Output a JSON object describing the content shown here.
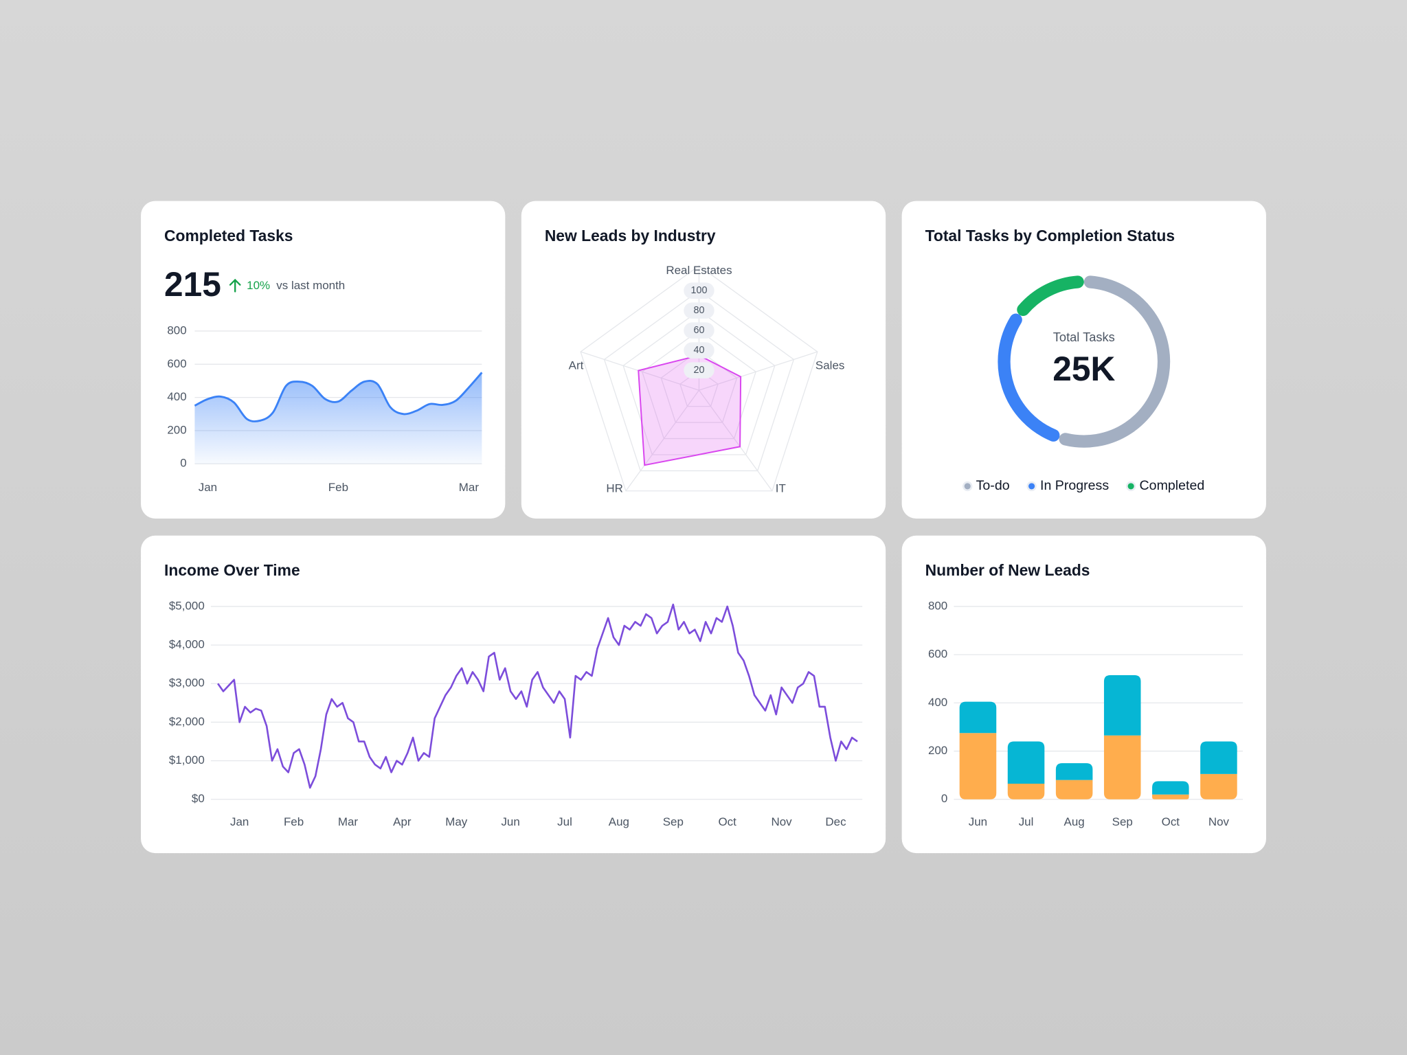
{
  "chart_data": [
    {
      "type": "area",
      "title": "Completed Tasks",
      "kpi": 215,
      "change": "10%",
      "change_note": "vs last month",
      "categories": [
        null,
        "Jan",
        null,
        null,
        null,
        null,
        null,
        null,
        null,
        null,
        null,
        "Feb",
        null,
        null,
        null,
        null,
        null,
        null,
        null,
        null,
        null,
        "Mar",
        null
      ],
      "values": [
        350,
        390,
        405,
        370,
        270,
        260,
        310,
        470,
        495,
        470,
        390,
        375,
        440,
        495,
        480,
        340,
        300,
        320,
        360,
        355,
        380,
        460,
        550
      ],
      "color": "#3b82f6",
      "ylim": [
        0,
        800
      ],
      "yticks": [
        0,
        200,
        400,
        600,
        800
      ],
      "grid": true
    },
    {
      "type": "radar",
      "title": "New Leads by Industry",
      "categories": [
        "Real Estates",
        "Sales",
        "IT",
        "HR",
        "Art"
      ],
      "values": [
        35,
        44,
        70,
        93,
        64
      ],
      "color": "#d946ef",
      "ylim": [
        0,
        100
      ],
      "yticks": [
        20,
        40,
        60,
        80,
        100
      ],
      "grid": true
    },
    {
      "type": "donut",
      "title": "Total Tasks by Completion Status",
      "center_label": "Total Tasks",
      "center_value": "25K",
      "categories": [
        "To-do",
        "In Progress",
        "Completed"
      ],
      "values": [
        55,
        30,
        15
      ],
      "colors": [
        "#a3afc2",
        "#3b82f6",
        "#16b364"
      ],
      "legend": "bottom"
    },
    {
      "type": "line",
      "title": "Income Over Time",
      "categories": [
        null,
        null,
        null,
        null,
        "Jan",
        null,
        null,
        null,
        null,
        null,
        null,
        null,
        null,
        null,
        "Feb",
        null,
        null,
        null,
        null,
        null,
        null,
        null,
        null,
        null,
        "Mar",
        null,
        null,
        null,
        null,
        null,
        null,
        null,
        null,
        null,
        "Apr",
        null,
        null,
        null,
        null,
        null,
        null,
        null,
        null,
        null,
        "May",
        null,
        null,
        null,
        null,
        null,
        null,
        null,
        null,
        null,
        "Jun",
        null,
        null,
        null,
        null,
        null,
        null,
        null,
        null,
        null,
        "Jul",
        null,
        null,
        null,
        null,
        null,
        null,
        null,
        null,
        null,
        "Aug",
        null,
        null,
        null,
        null,
        null,
        null,
        null,
        null,
        null,
        "Sep",
        null,
        null,
        null,
        null,
        null,
        null,
        null,
        null,
        null,
        "Oct",
        null,
        null,
        null,
        null,
        null,
        null,
        null,
        null,
        null,
        "Nov",
        null,
        null,
        null,
        null,
        null,
        null,
        null,
        null,
        null,
        "Dec",
        null,
        null,
        null,
        null
      ],
      "values": [
        3000,
        2800,
        2950,
        3100,
        2000,
        2400,
        2250,
        2350,
        2300,
        1900,
        1000,
        1300,
        850,
        700,
        1200,
        1300,
        900,
        300,
        600,
        1300,
        2200,
        2600,
        2400,
        2500,
        2100,
        2000,
        1500,
        1500,
        1100,
        900,
        800,
        1100,
        700,
        1000,
        900,
        1200,
        1600,
        1000,
        1200,
        1100,
        2100,
        2400,
        2700,
        2900,
        3200,
        3400,
        3000,
        3300,
        3100,
        2800,
        3700,
        3800,
        3100,
        3400,
        2800,
        2600,
        2800,
        2400,
        3100,
        3300,
        2900,
        2700,
        2500,
        2800,
        2600,
        1600,
        3200,
        3100,
        3300,
        3200,
        3900,
        4300,
        4700,
        4200,
        4000,
        4500,
        4400,
        4600,
        4500,
        4800,
        4700,
        4300,
        4500,
        4600,
        5050,
        4400,
        4600,
        4300,
        4400,
        4100,
        4600,
        4300,
        4700,
        4600,
        5000,
        4500,
        3800,
        3600,
        3200,
        2700,
        2500,
        2300,
        2700,
        2200,
        2900,
        2700,
        2500,
        2900,
        3000,
        3300,
        3200,
        2400,
        2400,
        1600,
        1000,
        1500,
        1300,
        1600,
        1500
      ],
      "color": "#7c4ddb",
      "ylim": [
        0,
        5000
      ],
      "yticks": [
        {
          "value": 0,
          "label": "$0"
        },
        {
          "value": 1000,
          "label": "$1,000"
        },
        {
          "value": 2000,
          "label": "$2,000"
        },
        {
          "value": 3000,
          "label": "$3,000"
        },
        {
          "value": 4000,
          "label": "$4,000"
        },
        {
          "value": 5000,
          "label": "$5,000"
        }
      ],
      "grid": true
    },
    {
      "type": "stacked_bar",
      "title": "Number of New Leads",
      "categories": [
        "Jun",
        "Jul",
        "Aug",
        "Sep",
        "Oct",
        "Nov"
      ],
      "series": [
        {
          "color": "#ffad4d",
          "values": [
            275,
            65,
            80,
            265,
            20,
            105
          ]
        },
        {
          "color": "#06b6d4",
          "values": [
            130,
            175,
            70,
            250,
            55,
            135
          ]
        }
      ],
      "ylim": [
        0,
        800
      ],
      "yticks": [
        0,
        200,
        400,
        600,
        800
      ],
      "grid": true
    }
  ]
}
